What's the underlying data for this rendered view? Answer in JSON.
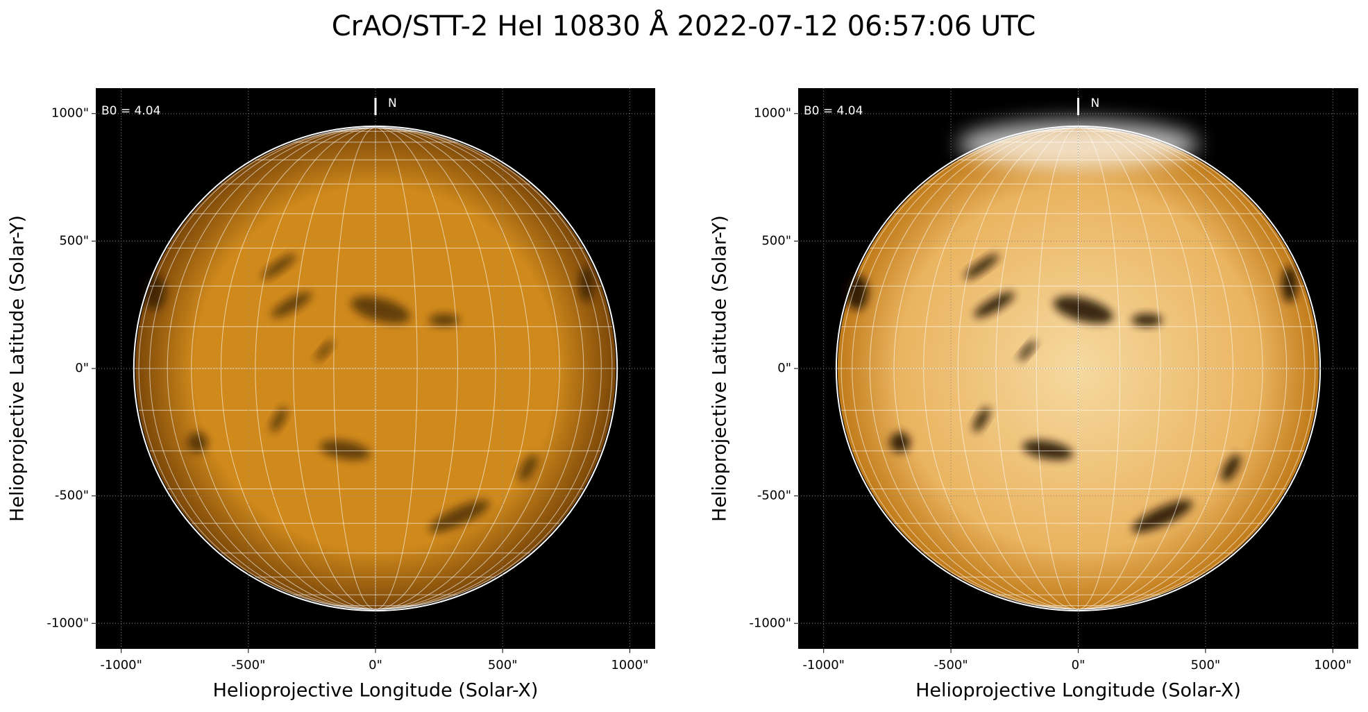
{
  "title": "CrAO/STT-2 HeI 10830 Å 2022-07-12 06:57:06 UTC",
  "chart_data": [
    {
      "type": "image",
      "xlabel": "Helioprojective Longitude (Solar-X)",
      "ylabel": "Helioprojective Latitude (Solar-Y)",
      "xlim": [
        -1100,
        1100
      ],
      "ylim": [
        -1100,
        1100
      ],
      "xticks": [
        {
          "value": -1000,
          "label": "-1000\""
        },
        {
          "value": -500,
          "label": "-500\""
        },
        {
          "value": 0,
          "label": "0\""
        },
        {
          "value": 500,
          "label": "500\""
        },
        {
          "value": 1000,
          "label": "1000\""
        }
      ],
      "yticks": [
        {
          "value": -1000,
          "label": "-1000\""
        },
        {
          "value": -500,
          "label": "-500\""
        },
        {
          "value": 0,
          "label": "0\""
        },
        {
          "value": 500,
          "label": "500\""
        },
        {
          "value": 1000,
          "label": "1000\""
        }
      ],
      "grid": true,
      "annotations": [
        "B0 = 4.04",
        "N"
      ],
      "color": "#d08a1c"
    },
    {
      "type": "image",
      "xlabel": "Helioprojective Longitude (Solar-X)",
      "ylabel": "Helioprojective Latitude (Solar-Y)",
      "xlim": [
        -1100,
        1100
      ],
      "ylim": [
        -1100,
        1100
      ],
      "xticks": [
        {
          "value": -1000,
          "label": "-1000\""
        },
        {
          "value": -500,
          "label": "-500\""
        },
        {
          "value": 0,
          "label": "0\""
        },
        {
          "value": 500,
          "label": "500\""
        },
        {
          "value": 1000,
          "label": "1000\""
        }
      ],
      "yticks": [
        {
          "value": -1000,
          "label": "-1000\""
        },
        {
          "value": -500,
          "label": "-500\""
        },
        {
          "value": 0,
          "label": "0\""
        },
        {
          "value": 500,
          "label": "500\""
        },
        {
          "value": 1000,
          "label": "1000\""
        }
      ],
      "grid": true,
      "annotations": [
        "B0 = 4.04",
        "N"
      ],
      "color": "#eab460"
    }
  ]
}
